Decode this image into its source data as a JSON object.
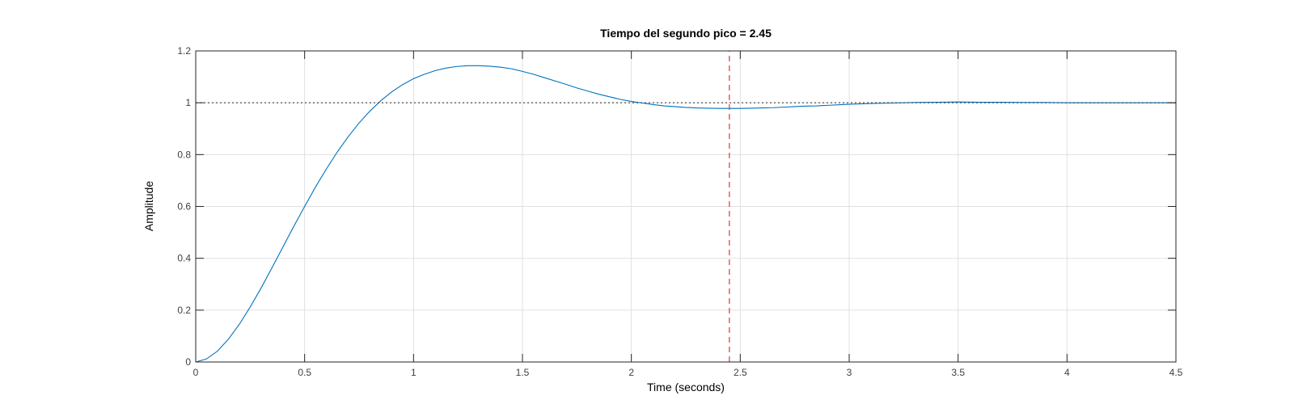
{
  "chart_data": {
    "type": "line",
    "title": "Tiempo del segundo pico = 2.45",
    "xlabel": "Time (seconds)",
    "ylabel": "Amplitude",
    "xlim": [
      0,
      4.5
    ],
    "ylim": [
      0,
      1.2
    ],
    "xticks": [
      0,
      0.5,
      1,
      1.5,
      2,
      2.5,
      3,
      3.5,
      4,
      4.5
    ],
    "xtick_labels": [
      "0",
      "0.5",
      "1",
      "1.5",
      "2",
      "2.5",
      "3",
      "3.5",
      "4",
      "4.5"
    ],
    "yticks": [
      0,
      0.2,
      0.4,
      0.6,
      0.8,
      1,
      1.2
    ],
    "ytick_labels": [
      "0",
      "0.2",
      "0.4",
      "0.6",
      "0.8",
      "1",
      "1.2"
    ],
    "grid": true,
    "series": [
      {
        "color": "#0072bd",
        "style": "solid",
        "x": [
          0,
          0.05,
          0.1,
          0.15,
          0.2,
          0.25,
          0.3,
          0.35,
          0.4,
          0.45,
          0.5,
          0.55,
          0.6,
          0.65,
          0.7,
          0.75,
          0.8,
          0.85,
          0.9,
          0.95,
          1.0,
          1.05,
          1.1,
          1.15,
          1.2,
          1.25,
          1.3,
          1.35,
          1.4,
          1.45,
          1.5,
          1.55,
          1.6,
          1.65,
          1.7,
          1.75,
          1.8,
          1.85,
          1.9,
          1.95,
          2.0,
          2.05,
          2.1,
          2.15,
          2.2,
          2.25,
          2.3,
          2.35,
          2.4,
          2.45,
          2.5,
          2.55,
          2.6,
          2.65,
          2.7,
          2.75,
          2.8,
          2.85,
          2.9,
          2.95,
          3.0,
          3.1,
          3.2,
          3.3,
          3.4,
          3.5,
          3.6,
          3.7,
          3.8,
          3.9,
          4.0,
          4.1,
          4.2,
          4.3,
          4.4,
          4.5
        ],
        "y": [
          0,
          0.012,
          0.042,
          0.088,
          0.145,
          0.212,
          0.285,
          0.363,
          0.443,
          0.523,
          0.6,
          0.675,
          0.745,
          0.81,
          0.869,
          0.922,
          0.968,
          1.008,
          1.042,
          1.07,
          1.093,
          1.11,
          1.124,
          1.134,
          1.14,
          1.143,
          1.143,
          1.141,
          1.137,
          1.131,
          1.121,
          1.11,
          1.097,
          1.084,
          1.071,
          1.057,
          1.045,
          1.033,
          1.023,
          1.013,
          1.005,
          0.999,
          0.993,
          0.988,
          0.985,
          0.982,
          0.98,
          0.979,
          0.978,
          0.978,
          0.978,
          0.979,
          0.98,
          0.981,
          0.983,
          0.985,
          0.987,
          0.988,
          0.99,
          0.992,
          0.994,
          0.997,
          0.999,
          1.001,
          1.002,
          1.003,
          1.002,
          1.002,
          1.001,
          1.001,
          1.0,
          1.0,
          1.0,
          1.0,
          1.0,
          1.0
        ]
      },
      {
        "color": "#404040",
        "style": "dotted",
        "x": [
          0,
          4.5
        ],
        "y": [
          1,
          1
        ]
      },
      {
        "color": "#d62728",
        "style": "dashed",
        "x": [
          2.45,
          2.45
        ],
        "y": [
          0,
          1.2
        ]
      }
    ]
  }
}
